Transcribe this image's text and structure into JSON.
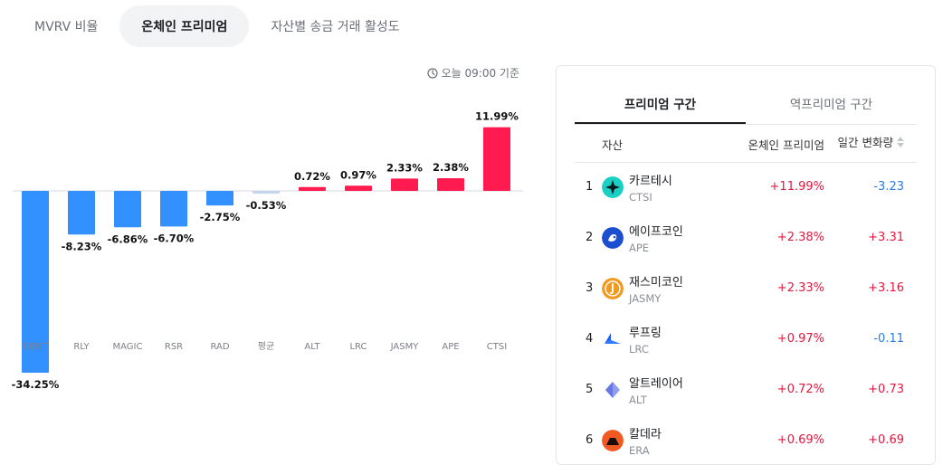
{
  "tabs": [
    {
      "label": "MVRV 비율",
      "active": false
    },
    {
      "label": "온체인 프리미엄",
      "active": true
    },
    {
      "label": "자산별 송금 거래 활성도",
      "active": false
    }
  ],
  "timestamp": {
    "icon": "clock-icon",
    "text": "오늘 09:00 기준"
  },
  "colors": {
    "negative": "#3390ff",
    "positive": "#ff1a4f",
    "average": "#c5d6ea",
    "up_text": "#e0193f",
    "down_text": "#2b7be0"
  },
  "chart_data": {
    "type": "bar",
    "categories": [
      "DENT",
      "RLY",
      "MAGIC",
      "RSR",
      "RAD",
      "평균",
      "ALT",
      "LRC",
      "JASMY",
      "APE",
      "CTSI"
    ],
    "values": [
      -34.25,
      -8.23,
      -6.86,
      -6.7,
      -2.75,
      -0.53,
      0.72,
      0.97,
      2.33,
      2.38,
      11.99
    ],
    "labels": [
      "-34.25%",
      "-8.23%",
      "-6.86%",
      "-6.70%",
      "-2.75%",
      "-0.53%",
      "0.72%",
      "0.97%",
      "2.33%",
      "2.38%",
      "11.99%"
    ],
    "highlight_category": "평균",
    "ylim": [
      -34.25,
      11.99
    ],
    "grid": false,
    "title": "",
    "xlabel": "",
    "ylabel": ""
  },
  "panel": {
    "tabs": [
      {
        "label": "프리미엄 구간",
        "active": true
      },
      {
        "label": "역프리미엄 구간",
        "active": false
      }
    ],
    "columns": {
      "asset": "자산",
      "premium": "온체인 프리미엄",
      "change": "일간 변화량"
    },
    "rows": [
      {
        "rank": "1",
        "name": "카르테시",
        "symbol": "CTSI",
        "logo": "cartesi-logo-icon",
        "premium": "+11.99%",
        "change": "-3.23",
        "direction": "down"
      },
      {
        "rank": "2",
        "name": "에이프코인",
        "symbol": "APE",
        "logo": "apecoin-logo-icon",
        "premium": "+2.38%",
        "change": "+3.31",
        "direction": "up"
      },
      {
        "rank": "3",
        "name": "재스미코인",
        "symbol": "JASMY",
        "logo": "jasmy-logo-icon",
        "premium": "+2.33%",
        "change": "+3.16",
        "direction": "up"
      },
      {
        "rank": "4",
        "name": "루프링",
        "symbol": "LRC",
        "logo": "loopring-logo-icon",
        "premium": "+0.97%",
        "change": "-0.11",
        "direction": "down"
      },
      {
        "rank": "5",
        "name": "알트레이어",
        "symbol": "ALT",
        "logo": "altlayer-logo-icon",
        "premium": "+0.72%",
        "change": "+0.73",
        "direction": "up"
      },
      {
        "rank": "6",
        "name": "칼데라",
        "symbol": "ERA",
        "logo": "caldera-logo-icon",
        "premium": "+0.69%",
        "change": "+0.69",
        "direction": "up"
      }
    ]
  }
}
